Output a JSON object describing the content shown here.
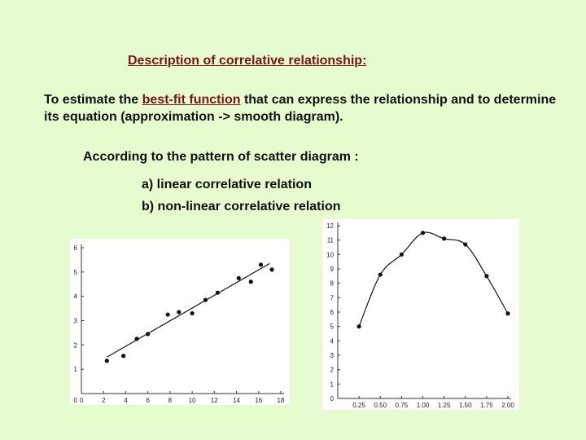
{
  "slide": {
    "title": "Description of correlative relationship:",
    "intro_before": "To estimate the ",
    "intro_term": "best-fit function",
    "intro_after": " that can express the relationship and to determine its equation (approximation -> smooth diagram).",
    "pattern_label": "According to the pattern of scatter diagram :",
    "item_a": "a) linear correlative relation",
    "item_b": "b) non-linear correlative relation"
  },
  "chart_data": [
    {
      "type": "scatter",
      "title": "",
      "xlabel": "",
      "ylabel": "",
      "xlim": [
        0,
        18
      ],
      "ylim": [
        0,
        6
      ],
      "x_ticks": [
        "0",
        "2",
        "4",
        "6",
        "8",
        "10",
        "12",
        "14",
        "16",
        "18"
      ],
      "y_ticks": [
        "1",
        "2",
        "3",
        "4",
        "5",
        "6"
      ],
      "points": [
        {
          "x": 2.3,
          "y": 1.35
        },
        {
          "x": 3.8,
          "y": 1.55
        },
        {
          "x": 5.0,
          "y": 2.25
        },
        {
          "x": 6.0,
          "y": 2.45
        },
        {
          "x": 7.8,
          "y": 3.25
        },
        {
          "x": 8.8,
          "y": 3.35
        },
        {
          "x": 10.0,
          "y": 3.3
        },
        {
          "x": 11.2,
          "y": 3.85
        },
        {
          "x": 12.3,
          "y": 4.15
        },
        {
          "x": 14.2,
          "y": 4.75
        },
        {
          "x": 15.3,
          "y": 4.6
        },
        {
          "x": 16.2,
          "y": 5.3
        },
        {
          "x": 17.2,
          "y": 5.1
        }
      ],
      "fit": {
        "kind": "linear",
        "from": [
          2.3,
          1.5
        ],
        "to": [
          17.0,
          5.35
        ]
      },
      "grid": false
    },
    {
      "type": "scatter",
      "title": "",
      "xlabel": "",
      "ylabel": "",
      "xlim": [
        0,
        2.0
      ],
      "ylim": [
        0,
        12
      ],
      "x_ticks": [
        "0.25",
        "0.50",
        "0.75",
        "1.00",
        "1.25",
        "1.50",
        "1.75",
        "2.00"
      ],
      "y_ticks": [
        "0",
        "1",
        "2",
        "3",
        "4",
        "5",
        "6",
        "7",
        "8",
        "9",
        "10",
        "11",
        "12"
      ],
      "points": [
        {
          "x": 0.25,
          "y": 5.0
        },
        {
          "x": 0.5,
          "y": 8.6
        },
        {
          "x": 0.75,
          "y": 10.0
        },
        {
          "x": 1.0,
          "y": 11.5
        },
        {
          "x": 1.25,
          "y": 11.1
        },
        {
          "x": 1.5,
          "y": 10.7
        },
        {
          "x": 1.75,
          "y": 8.5
        },
        {
          "x": 2.0,
          "y": 5.9
        }
      ],
      "fit": {
        "kind": "curve"
      },
      "grid": false
    }
  ]
}
